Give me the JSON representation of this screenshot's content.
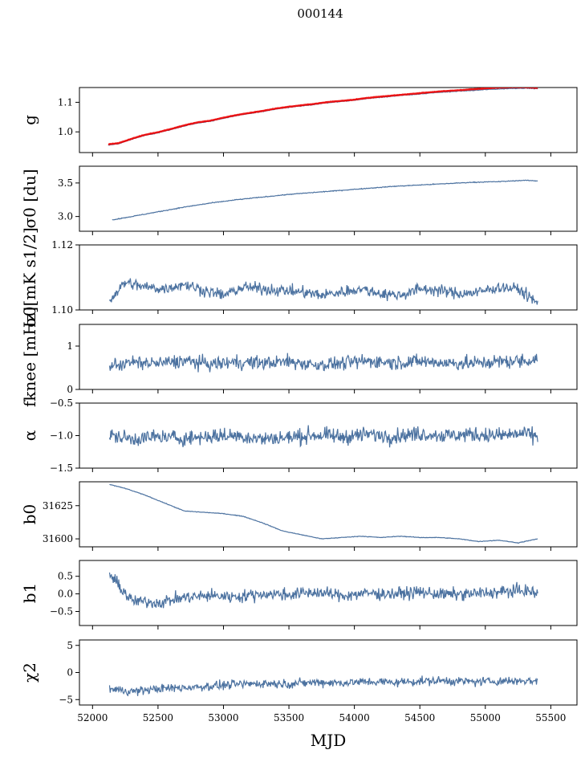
{
  "figure": {
    "title": "000144",
    "xlabel": "MJD"
  },
  "colors": {
    "series": "#4c72a0",
    "overlay": "#ee0000",
    "axes": "#000000"
  },
  "chart_data": [
    {
      "type": "line",
      "ylabel": "g",
      "xlim": [
        51900,
        55700
      ],
      "ylim": [
        0.93,
        1.15
      ],
      "yticks": [
        1.0,
        1.1
      ],
      "ytick_labels": [
        "1.0",
        "1.1"
      ],
      "x": [
        52120,
        52200,
        52300,
        52400,
        52500,
        52600,
        52700,
        52800,
        52900,
        53000,
        53100,
        53200,
        53300,
        53400,
        53500,
        53600,
        53700,
        53800,
        53900,
        54000,
        54100,
        54200,
        54300,
        54400,
        54500,
        54600,
        54700,
        54800,
        54900,
        55000,
        55100,
        55200,
        55300,
        55400
      ],
      "series": [
        {
          "values": [
            0.955,
            0.96,
            0.975,
            0.988,
            0.997,
            1.008,
            1.02,
            1.03,
            1.036,
            1.046,
            1.055,
            1.062,
            1.069,
            1.077,
            1.083,
            1.088,
            1.093,
            1.099,
            1.103,
            1.107,
            1.113,
            1.117,
            1.121,
            1.125,
            1.128,
            1.132,
            1.135,
            1.138,
            1.14,
            1.143,
            1.145,
            1.147,
            1.148,
            1.146
          ]
        },
        {
          "overlay": true,
          "values": [
            0.958,
            0.962,
            0.977,
            0.99,
            0.999,
            1.01,
            1.022,
            1.032,
            1.038,
            1.048,
            1.057,
            1.064,
            1.071,
            1.079,
            1.085,
            1.09,
            1.095,
            1.101,
            1.105,
            1.109,
            1.115,
            1.119,
            1.123,
            1.127,
            1.131,
            1.135,
            1.138,
            1.141,
            1.144,
            1.147,
            1.15,
            1.151,
            1.151,
            1.149
          ]
        }
      ]
    },
    {
      "type": "line",
      "ylabel": "σ0 [du]",
      "xlim": [
        51900,
        55700
      ],
      "ylim": [
        2.78,
        3.75
      ],
      "yticks": [
        3.0,
        3.5
      ],
      "ytick_labels": [
        "3.0",
        "3.5"
      ],
      "x": [
        52150,
        52300,
        52500,
        52700,
        52900,
        53100,
        53300,
        53500,
        53700,
        53900,
        54100,
        54300,
        54500,
        54700,
        54900,
        55100,
        55300,
        55400
      ],
      "series": [
        {
          "values": [
            2.95,
            3.0,
            3.07,
            3.14,
            3.2,
            3.25,
            3.29,
            3.33,
            3.36,
            3.39,
            3.42,
            3.45,
            3.47,
            3.49,
            3.51,
            3.52,
            3.54,
            3.53
          ]
        }
      ]
    },
    {
      "type": "line",
      "ylabel": "σ0[mK s1/2]",
      "xlim": [
        51900,
        55700
      ],
      "ylim": [
        1.1,
        1.12
      ],
      "yticks": [
        1.1,
        1.12
      ],
      "ytick_labels": [
        "1.10",
        "1.12"
      ],
      "x": [
        52130,
        52250,
        52400,
        52550,
        52700,
        52850,
        53000,
        53150,
        53300,
        53450,
        53600,
        53750,
        53900,
        54050,
        54200,
        54350,
        54500,
        54650,
        54800,
        54950,
        55100,
        55250,
        55400
      ],
      "series": [
        {
          "values": [
            1.103,
            1.1085,
            1.107,
            1.1065,
            1.108,
            1.106,
            1.1045,
            1.107,
            1.1065,
            1.106,
            1.1055,
            1.1045,
            1.1055,
            1.1065,
            1.105,
            1.1045,
            1.1065,
            1.106,
            1.105,
            1.1055,
            1.107,
            1.1065,
            1.102
          ]
        }
      ]
    },
    {
      "type": "line",
      "ylabel": "fknee [mHz]",
      "xlim": [
        51900,
        55700
      ],
      "ylim": [
        0,
        1.5
      ],
      "yticks": [
        0,
        1
      ],
      "ytick_labels": [
        "0",
        "1"
      ],
      "x": [
        52130,
        52300,
        52500,
        52700,
        52900,
        53100,
        53300,
        53500,
        53700,
        53900,
        54100,
        54300,
        54500,
        54700,
        54900,
        55100,
        55300,
        55400
      ],
      "series": [
        {
          "values": [
            0.55,
            0.62,
            0.6,
            0.66,
            0.58,
            0.63,
            0.61,
            0.64,
            0.57,
            0.6,
            0.66,
            0.62,
            0.65,
            0.61,
            0.6,
            0.64,
            0.66,
            0.7
          ]
        }
      ]
    },
    {
      "type": "line",
      "ylabel": "α",
      "xlim": [
        51900,
        55700
      ],
      "ylim": [
        -1.5,
        -0.5
      ],
      "yticks": [
        -1.5,
        -1.0,
        -0.5
      ],
      "ytick_labels": [
        "−1.5",
        "−1.0",
        "−0.5"
      ],
      "x": [
        52130,
        52300,
        52500,
        52700,
        52900,
        53100,
        53300,
        53500,
        53700,
        53900,
        54100,
        54300,
        54500,
        54700,
        54900,
        55100,
        55300,
        55400
      ],
      "series": [
        {
          "values": [
            -1.0,
            -1.05,
            -1.02,
            -1.04,
            -1.01,
            -1.0,
            -1.05,
            -1.03,
            -0.99,
            -1.02,
            -0.98,
            -1.01,
            -0.97,
            -1.0,
            -0.98,
            -1.0,
            -0.97,
            -1.02
          ]
        }
      ]
    },
    {
      "type": "line",
      "ylabel": "b0",
      "xlim": [
        51900,
        55700
      ],
      "ylim": [
        31594,
        31643
      ],
      "yticks": [
        31600,
        31625
      ],
      "ytick_labels": [
        "31600",
        "31625"
      ],
      "x": [
        52130,
        52250,
        52400,
        52550,
        52700,
        52850,
        53000,
        53150,
        53300,
        53450,
        53600,
        53750,
        53900,
        54050,
        54200,
        54350,
        54500,
        54650,
        54800,
        54950,
        55100,
        55250,
        55400
      ],
      "series": [
        {
          "values": [
            31641,
            31638,
            31633,
            31627,
            31621,
            31620,
            31619,
            31617,
            31612,
            31606,
            31603,
            31600,
            31601,
            31602,
            31601,
            31602,
            31601,
            31601,
            31600,
            31598,
            31599,
            31597,
            31600
          ]
        }
      ]
    },
    {
      "type": "line",
      "ylabel": "b1",
      "xlim": [
        51900,
        55700
      ],
      "ylim": [
        -0.9,
        0.95
      ],
      "yticks": [
        -0.5,
        0.0,
        0.5
      ],
      "ytick_labels": [
        "−0.5",
        "0.0",
        "0.5"
      ],
      "x": [
        52130,
        52300,
        52500,
        52700,
        52900,
        53100,
        53300,
        53500,
        53700,
        53900,
        54100,
        54300,
        54500,
        54700,
        54900,
        55100,
        55300,
        55400
      ],
      "series": [
        {
          "values": [
            0.55,
            -0.2,
            -0.25,
            -0.1,
            -0.05,
            -0.08,
            0.0,
            -0.02,
            0.05,
            -0.05,
            0.02,
            0.0,
            0.05,
            -0.02,
            0.0,
            0.05,
            0.1,
            0.0
          ]
        }
      ]
    },
    {
      "type": "line",
      "ylabel": "χ2",
      "xlim": [
        51900,
        55700
      ],
      "ylim": [
        -6,
        6
      ],
      "yticks": [
        -5,
        0,
        5
      ],
      "ytick_labels": [
        "−5",
        "0",
        "5"
      ],
      "x": [
        52130,
        52300,
        52500,
        52700,
        52900,
        53100,
        53300,
        53500,
        53700,
        53900,
        54100,
        54300,
        54500,
        54700,
        54900,
        55100,
        55300,
        55400
      ],
      "series": [
        {
          "values": [
            -3,
            -3.5,
            -3,
            -2.8,
            -2.5,
            -2.2,
            -2.0,
            -2.1,
            -1.8,
            -1.9,
            -1.7,
            -1.8,
            -1.6,
            -1.5,
            -1.7,
            -1.6,
            -1.5,
            -1.6
          ]
        }
      ]
    }
  ],
  "xaxis": {
    "xlim": [
      51900,
      55700
    ],
    "ticks": [
      52000,
      52500,
      53000,
      53500,
      54000,
      54500,
      55000,
      55500
    ],
    "tick_labels": [
      "52000",
      "52500",
      "53000",
      "53500",
      "54000",
      "54500",
      "55000",
      "55500"
    ]
  }
}
